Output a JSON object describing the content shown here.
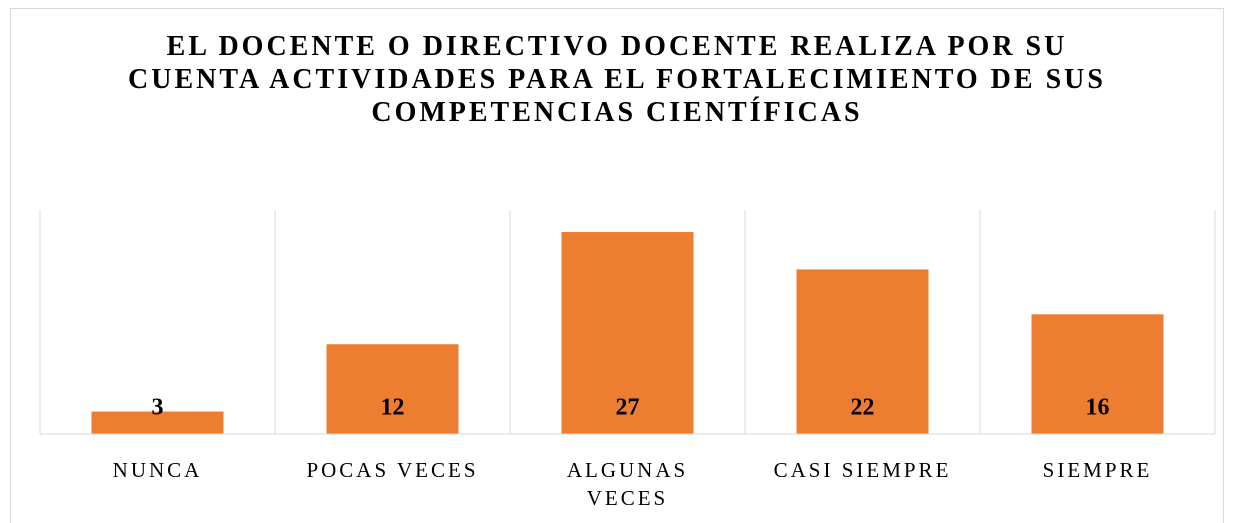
{
  "chart_data": {
    "type": "bar",
    "title": "EL DOCENTE O DIRECTIVO DOCENTE REALIZA POR SU CUENTA ACTIVIDADES PARA EL FORTALECIMIENTO DE SUS COMPETENCIAS CIENTÍFICAS",
    "categories": [
      "NUNCA",
      "POCAS VECES",
      "ALGUNAS VECES",
      "CASI SIEMPRE",
      "SIEMPRE"
    ],
    "values": [
      3,
      12,
      27,
      22,
      16
    ],
    "color": "#ed7d31",
    "grid": true
  }
}
